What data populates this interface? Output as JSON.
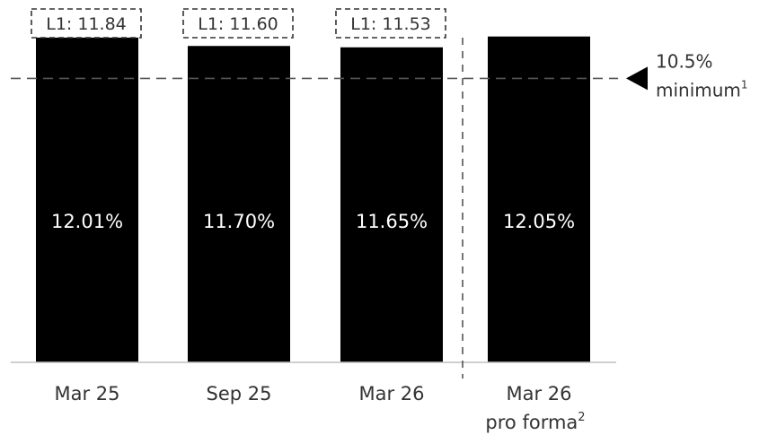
{
  "chart_data": {
    "type": "bar",
    "title": "",
    "xlabel": "",
    "ylabel": "",
    "categories": [
      "Mar 25",
      "Sep 25",
      "Mar 26",
      "Mar 26"
    ],
    "category_sublabels": [
      "",
      "",
      "",
      "pro forma"
    ],
    "category_sublabel_footnotes": [
      "",
      "",
      "",
      "2"
    ],
    "values": [
      12.01,
      11.7,
      11.65,
      12.05
    ],
    "data_labels": [
      "12.01%",
      "11.70%",
      "11.65%",
      "12.05%"
    ],
    "leverage_boxes": [
      "L1: 11.84",
      "L1: 11.60",
      "L1: 11.53",
      ""
    ],
    "ylim": [
      0,
      13.4
    ],
    "grid": false,
    "bar_color": "#000000",
    "separator_before_index": 3,
    "reference_line": {
      "value": 10.5,
      "label_value": "10.5%",
      "label_text": "minimum",
      "footnote": "1",
      "style": "dashed",
      "color": "#555555"
    }
  }
}
